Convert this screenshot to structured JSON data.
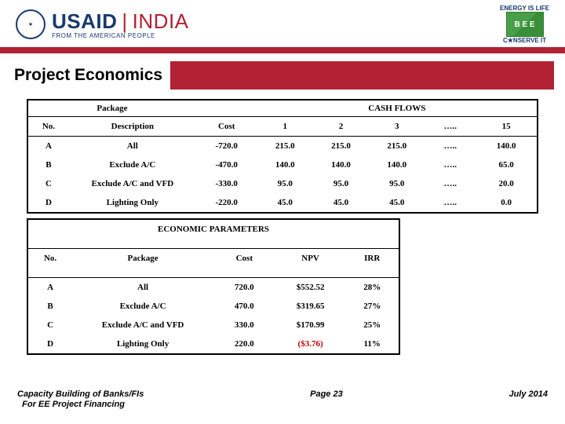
{
  "header": {
    "usaid": "USAID",
    "country": "INDIA",
    "tagline": "FROM THE AMERICAN PEOPLE",
    "energy_top": "ENERGY IS LIFE",
    "bee": "B E E",
    "conserve": "C★NSERVE IT"
  },
  "title": "Project Economics",
  "table1": {
    "head_left": "Package",
    "head_right": "CASH FLOWS",
    "cols": [
      "No.",
      "Description",
      "Cost",
      "1",
      "2",
      "3",
      "…..",
      "15"
    ],
    "rows": [
      [
        "A",
        "All",
        "-720.0",
        "215.0",
        "215.0",
        "215.0",
        "…..",
        "140.0"
      ],
      [
        "B",
        "Exclude A/C",
        "-470.0",
        "140.0",
        "140.0",
        "140.0",
        "…..",
        "65.0"
      ],
      [
        "C",
        "Exclude A/C and VFD",
        "-330.0",
        "95.0",
        "95.0",
        "95.0",
        "…..",
        "20.0"
      ],
      [
        "D",
        "Lighting Only",
        "-220.0",
        "45.0",
        "45.0",
        "45.0",
        "…..",
        "0.0"
      ]
    ],
    "col_widths": [
      "8%",
      "25%",
      "12%",
      "11%",
      "11%",
      "11%",
      "10%",
      "12%"
    ]
  },
  "table2": {
    "head": "ECONOMIC PARAMETERS",
    "cols": [
      "No.",
      "Package",
      "Cost",
      "NPV",
      "IRR"
    ],
    "rows": [
      [
        "A",
        "All",
        "720.0",
        "$552.52",
        "28%"
      ],
      [
        "B",
        "Exclude A/C",
        "470.0",
        "$319.65",
        "27%"
      ],
      [
        "C",
        "Exclude A/C and VFD",
        "330.0",
        "$170.99",
        "25%"
      ],
      [
        "D",
        "Lighting Only",
        "220.0",
        "($3.76)",
        "11%"
      ]
    ],
    "red_cell": {
      "row": 3,
      "col": 3
    },
    "col_widths": [
      "10%",
      "32%",
      "14%",
      "16%",
      "12%"
    ],
    "table_width": "73%"
  },
  "footer": {
    "left_line1": "Capacity Building of Banks/FIs",
    "left_line2": "For EE Project Financing",
    "center": "Page 23",
    "right": "July 2014"
  },
  "colors": {
    "brand_red": "#b22234",
    "brand_navy": "#1a3a6e",
    "red_text": "#c00000",
    "background": "#ffffff"
  }
}
